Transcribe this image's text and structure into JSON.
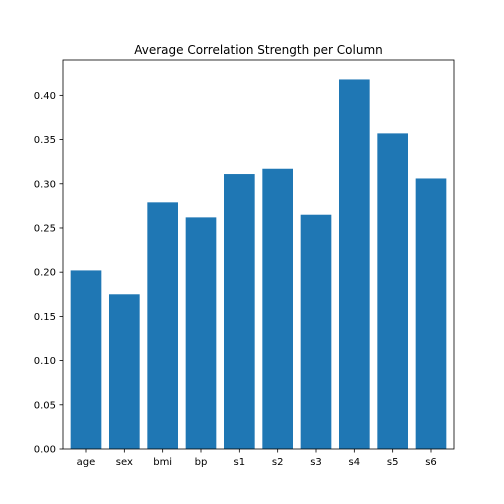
{
  "chart_data": {
    "type": "bar",
    "title": "Average Correlation Strength per Column",
    "xlabel": "",
    "ylabel": "",
    "categories": [
      "age",
      "sex",
      "bmi",
      "bp",
      "s1",
      "s2",
      "s3",
      "s4",
      "s5",
      "s6"
    ],
    "values": [
      0.202,
      0.175,
      0.279,
      0.262,
      0.311,
      0.317,
      0.265,
      0.418,
      0.357,
      0.306
    ],
    "ylim": [
      0,
      0.44
    ],
    "yticks": [
      0.0,
      0.05,
      0.1,
      0.15,
      0.2,
      0.25,
      0.3,
      0.35,
      0.4
    ],
    "ytick_labels": [
      "0.00",
      "0.05",
      "0.10",
      "0.15",
      "0.20",
      "0.25",
      "0.30",
      "0.35",
      "0.40"
    ],
    "bar_color": "#1f77b4",
    "grid": false,
    "legend": "none"
  }
}
